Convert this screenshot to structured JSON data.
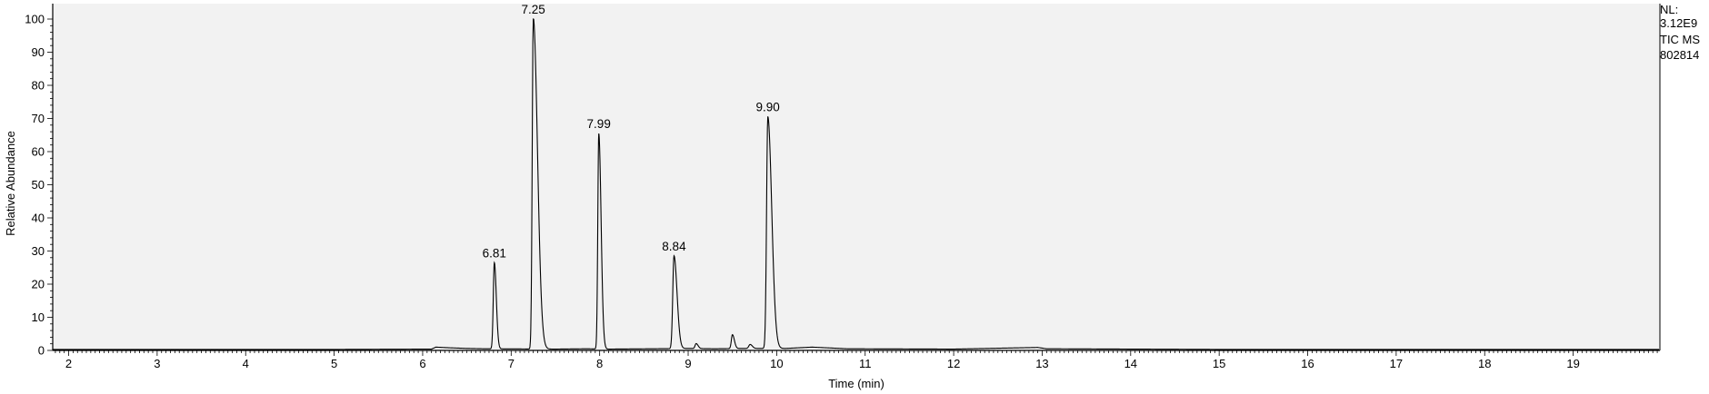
{
  "meta": {
    "nl_label": "NL:",
    "nl_value": "3.12E9",
    "scan_type": "TIC  MS",
    "sample_id": "802814"
  },
  "chart_data": {
    "type": "line",
    "title": "",
    "xlabel": "Time (min)",
    "ylabel": "Relative Abundance",
    "xlim": [
      1.82,
      19.98
    ],
    "ylim": [
      0,
      100
    ],
    "x_ticks": [
      2,
      3,
      4,
      5,
      6,
      7,
      8,
      9,
      10,
      11,
      12,
      13,
      14,
      15,
      16,
      17,
      18,
      19
    ],
    "y_ticks": [
      0,
      10,
      20,
      30,
      40,
      50,
      60,
      70,
      80,
      90,
      100
    ],
    "grid": false,
    "background_color": "#f2f2f2",
    "line_color": "#000000",
    "baseline": [
      [
        1.82,
        0.3
      ],
      [
        5.0,
        0.3
      ],
      [
        6.1,
        0.4
      ],
      [
        6.15,
        1.0
      ],
      [
        6.3,
        0.8
      ],
      [
        6.5,
        0.6
      ],
      [
        6.7,
        0.5
      ],
      [
        7.5,
        0.4
      ],
      [
        7.85,
        0.5
      ],
      [
        8.1,
        0.4
      ],
      [
        8.6,
        0.5
      ],
      [
        9.0,
        0.6
      ],
      [
        9.3,
        0.5
      ],
      [
        9.6,
        0.6
      ],
      [
        10.1,
        0.6
      ],
      [
        10.4,
        1.0
      ],
      [
        10.8,
        0.5
      ],
      [
        12.0,
        0.4
      ],
      [
        12.95,
        0.9
      ],
      [
        13.05,
        0.5
      ],
      [
        15.0,
        0.3
      ],
      [
        19.98,
        0.3
      ]
    ],
    "peaks": [
      {
        "rt": 6.81,
        "height": 26,
        "width": 0.012,
        "tail": 0.01,
        "label": "6.81"
      },
      {
        "rt": 7.25,
        "height": 100,
        "width": 0.012,
        "tail": 0.035,
        "label": "7.25"
      },
      {
        "rt": 7.99,
        "height": 65,
        "width": 0.011,
        "tail": 0.015,
        "label": "7.99"
      },
      {
        "rt": 8.84,
        "height": 28,
        "width": 0.014,
        "tail": 0.02,
        "label": "8.84"
      },
      {
        "rt": 9.09,
        "height": 1.5,
        "width": 0.012,
        "tail": 0.01,
        "label": ""
      },
      {
        "rt": 9.5,
        "height": 4.2,
        "width": 0.012,
        "tail": 0.01,
        "label": ""
      },
      {
        "rt": 9.7,
        "height": 1.2,
        "width": 0.015,
        "tail": 0.01,
        "label": ""
      },
      {
        "rt": 9.9,
        "height": 70,
        "width": 0.014,
        "tail": 0.03,
        "label": "9.90"
      }
    ]
  }
}
